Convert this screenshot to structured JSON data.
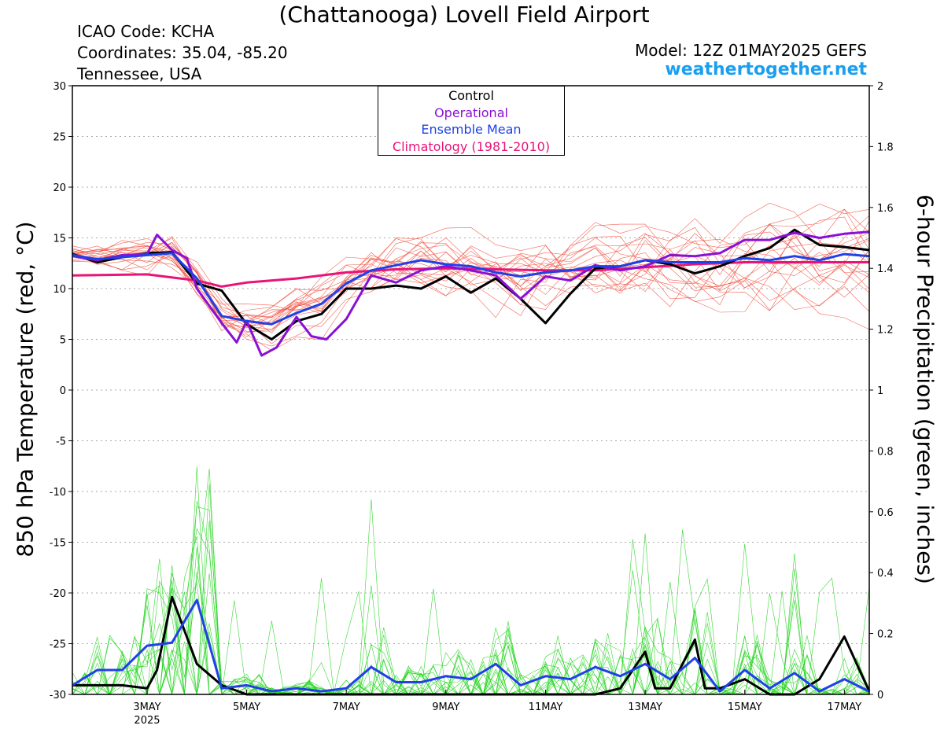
{
  "header": {
    "title": "(Chattanooga) Lovell Field Airport",
    "icao": "ICAO Code: KCHA",
    "coords": "Coordinates: 35.04, -85.20",
    "region": "Tennessee, USA",
    "model": "Model: 12Z 01MAY2025 GEFS",
    "site": "weathertogether.net"
  },
  "chart_data": {
    "type": "line",
    "ylabel_left": "850 hPa Temperature (red, °C)",
    "ylabel_right": "6-hour Precipitation (green, inches)",
    "x_ticks": [
      {
        "label": "3MAY",
        "sub": "2025",
        "day": 3
      },
      {
        "label": "5MAY",
        "day": 5
      },
      {
        "label": "7MAY",
        "day": 7
      },
      {
        "label": "9MAY",
        "day": 9
      },
      {
        "label": "11MAY",
        "day": 11
      },
      {
        "label": "13MAY",
        "day": 13
      },
      {
        "label": "15MAY",
        "day": 15
      },
      {
        "label": "17MAY",
        "day": 17
      }
    ],
    "xlim": [
      1.5,
      17.5
    ],
    "ylim_left": [
      -30,
      30
    ],
    "ylim_right": [
      0,
      2
    ],
    "left_ticks": [
      "30",
      "25",
      "20",
      "15",
      "10",
      "5",
      "0",
      "-5",
      "-10",
      "-15",
      "-20",
      "-25",
      "-30"
    ],
    "right_ticks": [
      "2",
      "1.8",
      "1.6",
      "1.4",
      "1.2",
      "1",
      "0.8",
      "0.6",
      "0.4",
      "0.2",
      "0"
    ],
    "legend": [
      {
        "label": "Control",
        "color": "#000000"
      },
      {
        "label": "Operational",
        "color": "#8a10d4"
      },
      {
        "label": "Ensemble Mean",
        "color": "#2040e8"
      },
      {
        "label": "Climatology (1981-2010)",
        "color": "#e8147a"
      }
    ],
    "series": [
      {
        "name": "Control",
        "axis": "left",
        "color": "#000000",
        "x": [
          1.5,
          2,
          2.5,
          3,
          3.5,
          4,
          4.5,
          5,
          5.5,
          6,
          6.5,
          7,
          7.5,
          8,
          8.5,
          9,
          9.5,
          10,
          10.5,
          11,
          11.5,
          12,
          12.5,
          13,
          13.5,
          14,
          14.5,
          15,
          15.5,
          16,
          16.5,
          17,
          17.5
        ],
        "y": [
          13.4,
          12.6,
          13.1,
          13.5,
          13.6,
          10.5,
          9.8,
          6.5,
          5,
          6.8,
          7.5,
          10,
          10,
          10.3,
          10,
          11.2,
          9.6,
          11,
          9,
          6.6,
          9.5,
          12,
          12.2,
          12.8,
          12.4,
          11.5,
          12.2,
          13.2,
          14,
          15.8,
          14.3,
          14.1,
          13.8
        ]
      },
      {
        "name": "Operational",
        "axis": "left",
        "color": "#8a10d4",
        "x": [
          1.5,
          2,
          2.5,
          3,
          3.2,
          3.5,
          3.8,
          4,
          4.5,
          4.8,
          5,
          5.3,
          5.6,
          6,
          6.3,
          6.6,
          7,
          7.5,
          8,
          8.5,
          9,
          9.5,
          10,
          10.5,
          11,
          11.5,
          12,
          12.5,
          13,
          13.5,
          14,
          14.5,
          15,
          15.5,
          16,
          16.5,
          17,
          17.5
        ],
        "y": [
          13.2,
          12.8,
          13.3,
          13.4,
          15.3,
          13.8,
          13,
          10,
          6.6,
          4.7,
          6.8,
          3.4,
          4.2,
          7.2,
          5.3,
          5,
          7,
          11.3,
          10.6,
          11.8,
          12.2,
          11.8,
          11.3,
          9,
          11.2,
          10.8,
          12.3,
          11.8,
          12.2,
          13.3,
          13.2,
          13.5,
          14.8,
          14.8,
          15.5,
          15,
          15.4,
          15.6
        ]
      },
      {
        "name": "Ensemble Mean",
        "axis": "left",
        "color": "#2040e8",
        "x": [
          1.5,
          2,
          2.5,
          3,
          3.5,
          4,
          4.5,
          5,
          5.5,
          6,
          6.5,
          7,
          7.5,
          8,
          8.5,
          9,
          9.5,
          10,
          10.5,
          11,
          11.5,
          12,
          12.5,
          13,
          13.5,
          14,
          14.5,
          15,
          15.5,
          16,
          16.5,
          17,
          17.5
        ],
        "y": [
          13.3,
          12.9,
          13.1,
          13.3,
          13.5,
          11,
          7.3,
          6.8,
          6.5,
          7.6,
          8.5,
          10.5,
          11.8,
          12.3,
          12.8,
          12.4,
          12.2,
          11.6,
          11.2,
          11.6,
          11.8,
          12.2,
          12.2,
          12.8,
          12.6,
          12.6,
          12.6,
          13,
          12.8,
          13.2,
          12.8,
          13.4,
          13.2
        ]
      },
      {
        "name": "Climatology (1981-2010)",
        "axis": "left",
        "color": "#e8147a",
        "x": [
          1.5,
          3,
          4,
          4.5,
          5,
          6,
          7,
          8,
          9,
          10,
          11,
          12,
          13,
          14,
          15,
          16,
          17,
          17.5
        ],
        "y": [
          11.3,
          11.4,
          10.8,
          10.2,
          10.6,
          11,
          11.6,
          11.9,
          12,
          11.9,
          11.8,
          11.8,
          12.1,
          12.4,
          12.6,
          12.6,
          12.6,
          12.6
        ]
      },
      {
        "name": "Control",
        "axis": "right",
        "color": "#000000",
        "x": [
          1.5,
          2,
          2.5,
          3,
          3.2,
          3.5,
          4,
          4.5,
          5,
          6,
          7,
          8,
          9,
          10,
          11,
          12,
          12.5,
          13,
          13.2,
          13.5,
          14,
          14.2,
          14.5,
          15,
          15.5,
          16,
          16.5,
          17,
          17.5
        ],
        "y": [
          0.03,
          0.03,
          0.03,
          0.02,
          0.08,
          0.32,
          0.1,
          0.03,
          0,
          0,
          0,
          0,
          0,
          0,
          0,
          0,
          0.02,
          0.14,
          0.02,
          0.02,
          0.18,
          0.02,
          0.02,
          0.05,
          0,
          0,
          0.05,
          0.19,
          0.01
        ]
      },
      {
        "name": "Ensemble Mean",
        "axis": "right",
        "color": "#2040e8",
        "x": [
          1.5,
          2,
          2.5,
          3,
          3.5,
          4,
          4.5,
          5,
          5.5,
          6,
          6.5,
          7,
          7.5,
          8,
          8.5,
          9,
          9.5,
          10,
          10.5,
          11,
          11.5,
          12,
          12.5,
          13,
          13.5,
          14,
          14.5,
          15,
          15.5,
          16,
          16.5,
          17,
          17.5
        ],
        "y": [
          0.03,
          0.08,
          0.08,
          0.16,
          0.17,
          0.31,
          0.02,
          0.03,
          0.01,
          0.02,
          0.01,
          0.02,
          0.09,
          0.04,
          0.04,
          0.06,
          0.05,
          0.1,
          0.03,
          0.06,
          0.05,
          0.09,
          0.06,
          0.1,
          0.05,
          0.12,
          0.01,
          0.08,
          0.02,
          0.07,
          0.01,
          0.05,
          0.01
        ]
      }
    ]
  }
}
